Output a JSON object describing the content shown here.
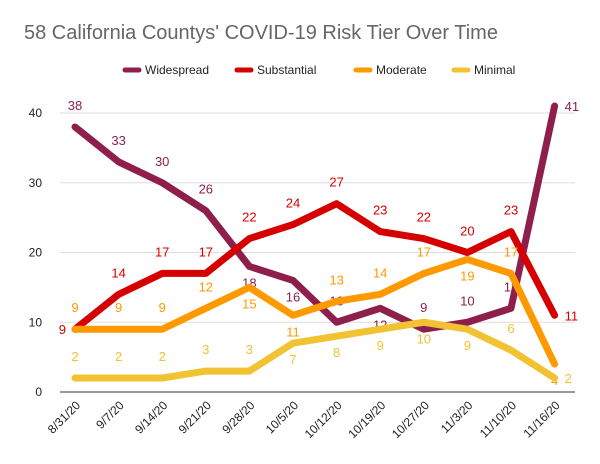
{
  "chart_data": {
    "type": "line",
    "title": "58 California Countys' COVID-19 Risk Tier Over Time",
    "xlabel": "",
    "ylabel": "",
    "categories": [
      "8/31/20",
      "9/7/20",
      "9/14/20",
      "9/21/20",
      "9/28/20",
      "10/5/20",
      "10/12/20",
      "10/19/20",
      "10/27/20",
      "11/3/20",
      "11/10/20",
      "11/16/20"
    ],
    "ylim": [
      0,
      42
    ],
    "yticks": [
      0,
      10,
      20,
      30,
      40
    ],
    "grid": true,
    "legend": "top",
    "data_labels": true,
    "series": [
      {
        "name": "Widespread",
        "color": "#8e1f4c",
        "values": [
          38,
          33,
          30,
          26,
          18,
          16,
          10,
          12,
          9,
          10,
          12,
          41
        ]
      },
      {
        "name": "Substantial",
        "color": "#d50000",
        "values": [
          9,
          14,
          17,
          17,
          22,
          24,
          27,
          23,
          22,
          20,
          23,
          11
        ]
      },
      {
        "name": "Moderate",
        "color": "#ff9900",
        "values": [
          9,
          9,
          9,
          12,
          15,
          11,
          13,
          14,
          17,
          19,
          17,
          4
        ]
      },
      {
        "name": "Minimal",
        "color": "#f1c232",
        "values": [
          2,
          2,
          2,
          3,
          3,
          7,
          8,
          9,
          10,
          9,
          6,
          2
        ]
      }
    ]
  }
}
